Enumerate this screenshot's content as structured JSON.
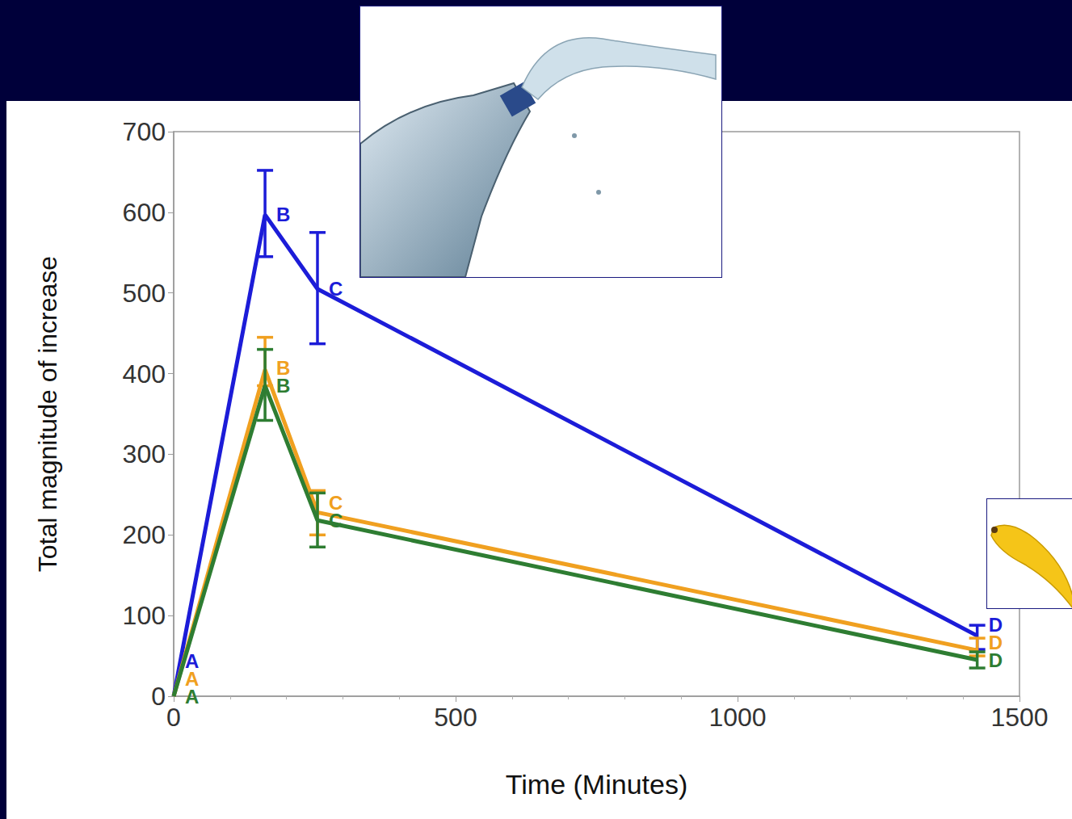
{
  "chart_data": {
    "type": "line",
    "x_label": "Time (Minutes)",
    "y_label": "Total magnitude of increase",
    "x": [
      0,
      162,
      255,
      1425
    ],
    "xlim": [
      0,
      1500
    ],
    "xticks": [
      0,
      500,
      1000,
      1500
    ],
    "ylim": [
      0,
      700
    ],
    "yticks": [
      0,
      100,
      200,
      300,
      400,
      500,
      600,
      700
    ],
    "grid": false,
    "series": [
      {
        "color": "#1c1cd8",
        "values": [
          0,
          597,
          505,
          75
        ],
        "error_low": [
          null,
          545,
          437,
          58
        ],
        "error_high": [
          null,
          652,
          575,
          88
        ],
        "annotations": [
          "A",
          "B",
          "C",
          "D"
        ]
      },
      {
        "color": "#f0a020",
        "values": [
          0,
          405,
          228,
          57
        ],
        "error_low": [
          null,
          385,
          200,
          50
        ],
        "error_high": [
          null,
          445,
          255,
          72
        ],
        "annotations": [
          "A",
          "B",
          "C",
          "D"
        ]
      },
      {
        "color": "#2e7d32",
        "values": [
          0,
          385,
          218,
          45
        ],
        "error_low": [
          null,
          342,
          185,
          35
        ],
        "error_high": [
          null,
          430,
          252,
          55
        ],
        "annotations": [
          "A",
          "B",
          "C",
          "D"
        ]
      }
    ]
  }
}
